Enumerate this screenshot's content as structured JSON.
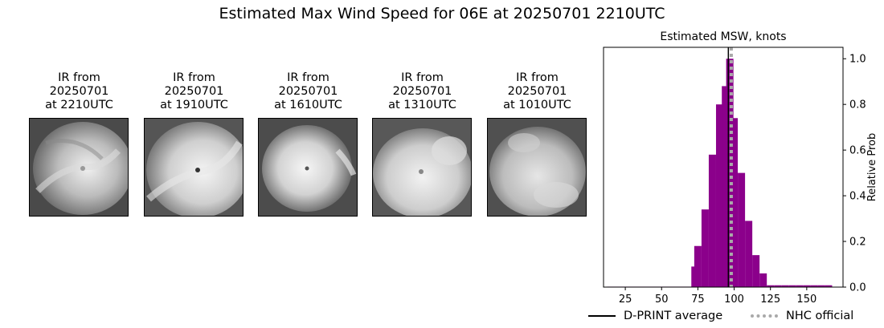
{
  "suptitle": "Estimated Max Wind Speed for 06E at 20250701 2210UTC",
  "ir_panels": [
    {
      "line1": "IR from",
      "line2": "20250701",
      "line3": "at 2210UTC",
      "img": "ir-satellite-image-2210"
    },
    {
      "line1": "IR from",
      "line2": "20250701",
      "line3": "at 1910UTC",
      "img": "ir-satellite-image-1910"
    },
    {
      "line1": "IR from",
      "line2": "20250701",
      "line3": "at 1610UTC",
      "img": "ir-satellite-image-1610"
    },
    {
      "line1": "IR from",
      "line2": "20250701",
      "line3": "at 1310UTC",
      "img": "ir-satellite-image-1310"
    },
    {
      "line1": "IR from",
      "line2": "20250701",
      "line3": "at 1010UTC",
      "img": "ir-satellite-image-1010"
    }
  ],
  "chart_data": {
    "type": "bar",
    "title": "Estimated MSW, knots",
    "xlabel": "",
    "ylabel": "Relative Prob",
    "xlim": [
      10,
      175
    ],
    "ylim": [
      0,
      1.05
    ],
    "xticks": [
      25,
      50,
      75,
      100,
      125,
      150
    ],
    "yticks": [
      0.0,
      0.2,
      0.4,
      0.6,
      0.8,
      1.0
    ],
    "ytick_labels": [
      "0.0",
      "0.2",
      "0.4",
      "0.6",
      "0.8",
      "1.0"
    ],
    "yaxis_side": "right",
    "bar_color": "#8b008b",
    "bin_width": 5,
    "bins": [
      {
        "x": 15,
        "p": 0.002
      },
      {
        "x": 20,
        "p": 0.002
      },
      {
        "x": 25,
        "p": 0.002
      },
      {
        "x": 30,
        "p": 0.002
      },
      {
        "x": 35,
        "p": 0.002
      },
      {
        "x": 40,
        "p": 0.002
      },
      {
        "x": 45,
        "p": 0.002
      },
      {
        "x": 50,
        "p": 0.002
      },
      {
        "x": 55,
        "p": 0.002
      },
      {
        "x": 60,
        "p": 0.002
      },
      {
        "x": 65,
        "p": 0.002
      },
      {
        "x": 70,
        "p": 0.002
      },
      {
        "x": 73,
        "p": 0.09
      },
      {
        "x": 75,
        "p": 0.18
      },
      {
        "x": 80,
        "p": 0.34
      },
      {
        "x": 85,
        "p": 0.58
      },
      {
        "x": 90,
        "p": 0.8
      },
      {
        "x": 94,
        "p": 0.88
      },
      {
        "x": 97,
        "p": 1.0
      },
      {
        "x": 100,
        "p": 0.74
      },
      {
        "x": 105,
        "p": 0.5
      },
      {
        "x": 110,
        "p": 0.29
      },
      {
        "x": 115,
        "p": 0.14
      },
      {
        "x": 120,
        "p": 0.06
      },
      {
        "x": 125,
        "p": 0.008
      },
      {
        "x": 130,
        "p": 0.008
      },
      {
        "x": 135,
        "p": 0.008
      },
      {
        "x": 140,
        "p": 0.008
      },
      {
        "x": 145,
        "p": 0.008
      },
      {
        "x": 150,
        "p": 0.008
      },
      {
        "x": 155,
        "p": 0.008
      },
      {
        "x": 160,
        "p": 0.008
      },
      {
        "x": 165,
        "p": 0.008
      }
    ],
    "dprint_average": 96,
    "nhc_official": 98,
    "legend": {
      "placement": "bottom",
      "entries": [
        {
          "label": "D-PRINT average",
          "color": "#000000",
          "style": "solid"
        },
        {
          "label": "NHC official",
          "color": "#a9a9a9",
          "style": "dotted"
        }
      ]
    }
  }
}
